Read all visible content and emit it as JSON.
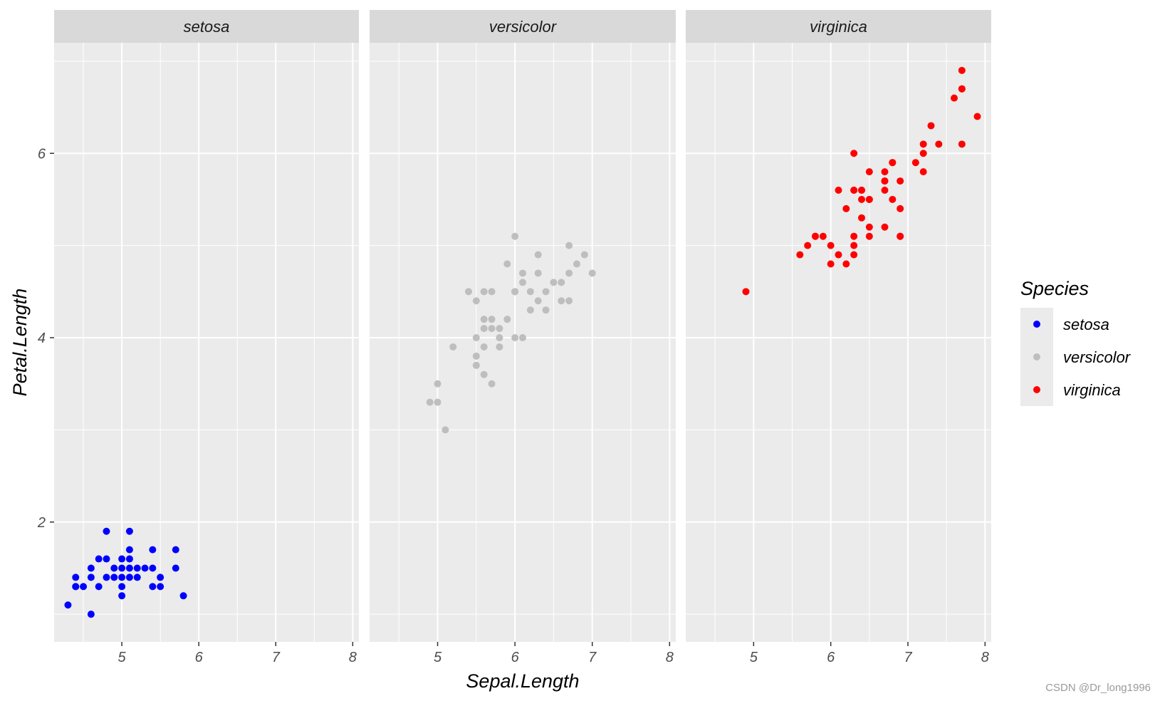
{
  "chart_data": {
    "type": "scatter",
    "facet_by": "Species",
    "facets": [
      "setosa",
      "versicolor",
      "virginica"
    ],
    "xlabel": "Sepal.Length",
    "ylabel": "Petal.Length",
    "xlim": [
      4.12,
      8.08
    ],
    "ylim": [
      0.7,
      7.2
    ],
    "x_ticks": [
      5,
      6,
      7,
      8
    ],
    "y_ticks": [
      2,
      4,
      6
    ],
    "grid": true,
    "legend": {
      "title": "Species",
      "position": "right",
      "entries": [
        "setosa",
        "versicolor",
        "virginica"
      ]
    },
    "colors": {
      "setosa": "#0000ff",
      "versicolor": "#bebebe",
      "virginica": "#ff0000",
      "panel_bg": "#ebebeb",
      "strip_bg": "#d9d9d9",
      "grid": "#ffffff"
    },
    "series": [
      {
        "name": "setosa",
        "x": [
          4.3,
          4.4,
          4.4,
          4.4,
          4.5,
          4.6,
          4.6,
          4.6,
          4.7,
          4.7,
          4.8,
          4.8,
          4.8,
          4.9,
          4.9,
          5.0,
          5.0,
          5.0,
          5.0,
          5.0,
          5.1,
          5.1,
          5.1,
          5.1,
          5.1,
          5.2,
          5.2,
          5.3,
          5.4,
          5.4,
          5.4,
          5.5,
          5.5,
          5.7,
          5.7,
          5.8
        ],
        "y": [
          1.1,
          1.3,
          1.4,
          1.3,
          1.3,
          1.0,
          1.4,
          1.5,
          1.3,
          1.6,
          1.4,
          1.6,
          1.9,
          1.4,
          1.5,
          1.2,
          1.3,
          1.4,
          1.5,
          1.6,
          1.4,
          1.5,
          1.6,
          1.7,
          1.9,
          1.4,
          1.5,
          1.5,
          1.3,
          1.5,
          1.7,
          1.3,
          1.4,
          1.5,
          1.7,
          1.2
        ]
      },
      {
        "name": "versicolor",
        "x": [
          4.9,
          5.0,
          5.0,
          5.1,
          5.2,
          5.4,
          5.5,
          5.5,
          5.5,
          5.5,
          5.6,
          5.6,
          5.6,
          5.6,
          5.6,
          5.7,
          5.7,
          5.7,
          5.7,
          5.8,
          5.8,
          5.8,
          5.9,
          5.9,
          6.0,
          6.0,
          6.0,
          6.0,
          6.1,
          6.1,
          6.1,
          6.2,
          6.2,
          6.3,
          6.3,
          6.3,
          6.4,
          6.4,
          6.5,
          6.6,
          6.6,
          6.7,
          6.7,
          6.7,
          6.8,
          6.9,
          7.0
        ],
        "y": [
          3.3,
          3.3,
          3.5,
          3.0,
          3.9,
          4.5,
          3.7,
          3.8,
          4.0,
          4.4,
          3.6,
          3.9,
          4.1,
          4.2,
          4.5,
          3.5,
          4.1,
          4.2,
          4.5,
          3.9,
          4.0,
          4.1,
          4.2,
          4.8,
          4.0,
          4.5,
          5.1,
          4.5,
          4.0,
          4.6,
          4.7,
          4.3,
          4.5,
          4.4,
          4.7,
          4.9,
          4.3,
          4.5,
          4.6,
          4.4,
          4.6,
          4.4,
          4.7,
          5.0,
          4.8,
          4.9,
          4.7
        ]
      },
      {
        "name": "virginica",
        "x": [
          4.9,
          5.6,
          5.7,
          5.8,
          5.8,
          5.9,
          6.0,
          6.0,
          6.1,
          6.1,
          6.2,
          6.2,
          6.3,
          6.3,
          6.3,
          6.3,
          6.3,
          6.3,
          6.4,
          6.4,
          6.4,
          6.4,
          6.5,
          6.5,
          6.5,
          6.5,
          6.5,
          6.7,
          6.7,
          6.7,
          6.7,
          6.7,
          6.8,
          6.8,
          6.8,
          6.9,
          6.9,
          6.9,
          6.9,
          7.1,
          7.2,
          7.2,
          7.2,
          7.3,
          7.4,
          7.6,
          7.7,
          7.7,
          7.7,
          7.7,
          7.9
        ],
        "y": [
          4.5,
          4.9,
          5.0,
          5.1,
          5.1,
          5.1,
          4.8,
          5.0,
          4.9,
          5.6,
          4.8,
          5.4,
          4.9,
          5.0,
          5.1,
          5.6,
          5.6,
          6.0,
          5.3,
          5.5,
          5.6,
          5.6,
          5.1,
          5.2,
          5.5,
          5.5,
          5.8,
          5.2,
          5.6,
          5.7,
          5.7,
          5.8,
          5.5,
          5.9,
          5.9,
          5.1,
          5.4,
          5.7,
          5.1,
          5.9,
          5.8,
          6.0,
          6.1,
          6.3,
          6.1,
          6.6,
          6.1,
          6.7,
          6.9,
          6.7,
          6.4
        ]
      }
    ]
  },
  "watermark": "CSDN @Dr_long1996"
}
